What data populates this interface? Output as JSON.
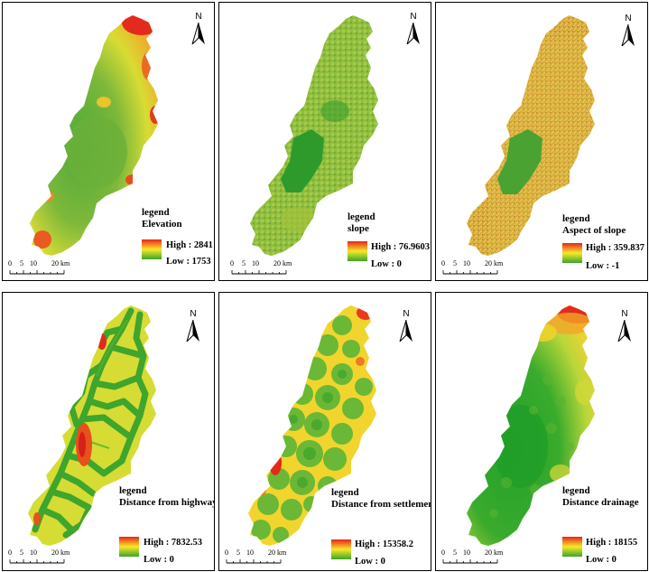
{
  "north_label": "N",
  "scale": {
    "ticks": [
      "0",
      "5",
      "10",
      "20 km"
    ]
  },
  "gradient": {
    "high_color": "#e8231c",
    "mid_color": "#f7e928",
    "low_color": "#3aa52c"
  },
  "panels": [
    {
      "id": "elevation",
      "legend_title": "legend",
      "legend_sub": "Elevation",
      "high_label": "High : 2841",
      "low_label": "Low : 1753"
    },
    {
      "id": "slope",
      "legend_title": "legend",
      "legend_sub": "slope",
      "high_label": "High : 76.9603",
      "low_label": "Low : 0"
    },
    {
      "id": "aspect",
      "legend_title": "legend",
      "legend_sub": "Aspect of slope",
      "high_label": "High : 359.837",
      "low_label": "Low : -1"
    },
    {
      "id": "highway",
      "legend_title": "legend",
      "legend_sub": "Distance from highway",
      "high_label": "High : 7832.53",
      "low_label": "Low : 0"
    },
    {
      "id": "settlement",
      "legend_title": "legend",
      "legend_sub": "Distance from settlement",
      "high_label": "High : 15358.2",
      "low_label": "Low : 0"
    },
    {
      "id": "drainage",
      "legend_title": "legend",
      "legend_sub": "Distance drainage",
      "high_label": "High : 18155",
      "low_label": "Low : 0"
    }
  ]
}
